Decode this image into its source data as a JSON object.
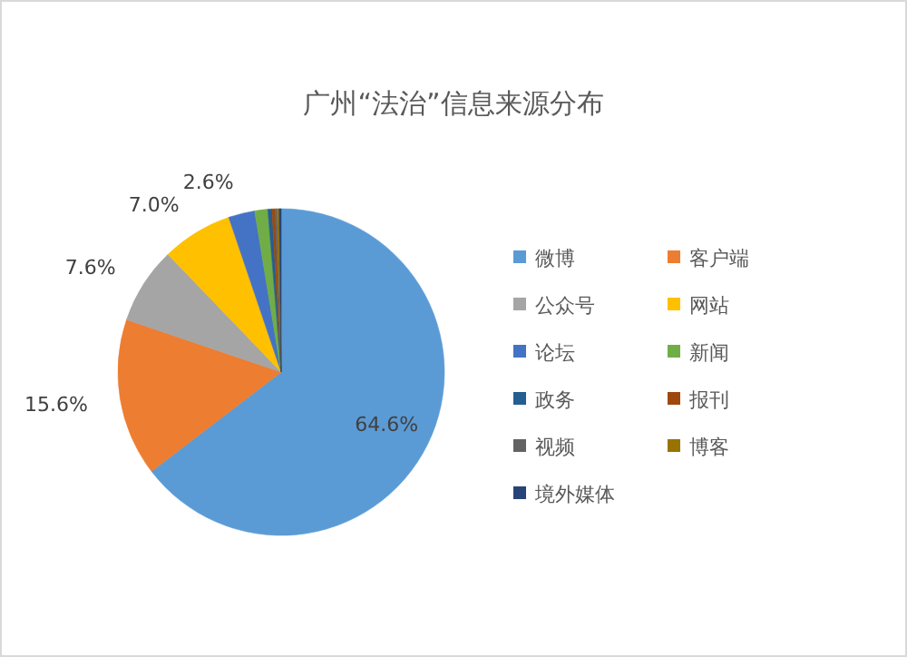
{
  "chart_data": {
    "type": "pie",
    "title": "广州“法治”信息来源分布",
    "categories": [
      "微博",
      "客户端",
      "公众号",
      "网站",
      "论坛",
      "新闻",
      "政务",
      "报刊",
      "视频",
      "博客",
      "境外媒体"
    ],
    "values": [
      64.6,
      15.6,
      7.6,
      7.0,
      2.6,
      1.3,
      0.4,
      0.3,
      0.2,
      0.2,
      0.2
    ],
    "colors": [
      "#5b9bd5",
      "#ed7d31",
      "#a5a5a5",
      "#ffc000",
      "#4472c4",
      "#70ad47",
      "#255e91",
      "#9e480e",
      "#636363",
      "#997300",
      "#264478"
    ],
    "value_labels": [
      "64.6%",
      "15.6%",
      "7.6%",
      "7.0%",
      "2.6%",
      null,
      null,
      null,
      null,
      null,
      null
    ],
    "legend": "right"
  }
}
